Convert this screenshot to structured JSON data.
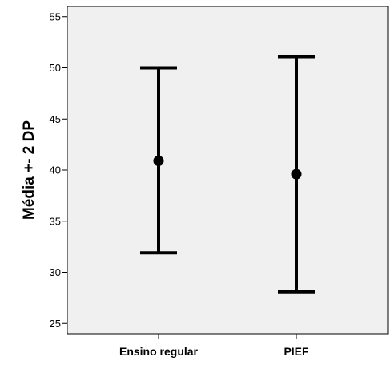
{
  "chart_data": {
    "type": "errorbar",
    "categories": [
      "Ensino regular",
      "PIEF"
    ],
    "series": [
      {
        "mean": [
          40.9,
          39.6
        ],
        "lower": [
          31.9,
          28.1
        ],
        "upper": [
          50.0,
          51.1
        ]
      }
    ],
    "title": "",
    "xlabel": "",
    "ylabel": "Média +- 2 DP",
    "ylim": [
      24,
      56
    ],
    "yticks": [
      25,
      30,
      35,
      40,
      45,
      50,
      55
    ],
    "grid": false,
    "plot_background": "#f0f0f0",
    "mark_color": "#000000"
  }
}
